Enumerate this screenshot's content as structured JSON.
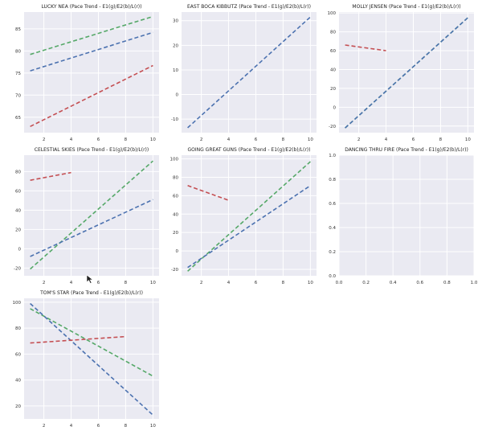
{
  "chart_data": [
    {
      "type": "line",
      "title": "LUCKY NEA (Pace Trend - E1(g)/E2(b)/L(r))",
      "xlim": [
        0.55,
        10.45
      ],
      "ylim": [
        61.5,
        88.8
      ],
      "xticks": [
        2,
        4,
        6,
        8,
        10
      ],
      "yticks": [
        65,
        70,
        75,
        80,
        85
      ],
      "series": [
        {
          "name": "E1",
          "color": "#55a868",
          "x": [
            1,
            10
          ],
          "y": [
            79.2,
            87.8
          ]
        },
        {
          "name": "E2",
          "color": "#4c72b0",
          "x": [
            1,
            10
          ],
          "y": [
            75.5,
            84.2
          ]
        },
        {
          "name": "L",
          "color": "#c44e52",
          "x": [
            1,
            10
          ],
          "y": [
            62.9,
            76.7
          ]
        }
      ]
    },
    {
      "type": "line",
      "title": "EAST BOCA KIBBUTZ (Pace Trend - E1(g)/E2(b)/L(r))",
      "xlim": [
        0.55,
        10.45
      ],
      "ylim": [
        -15.5,
        33.5
      ],
      "xticks": [
        2,
        4,
        6,
        8,
        10
      ],
      "yticks": [
        -10,
        0,
        10,
        20,
        30
      ],
      "series": [
        {
          "name": "E2",
          "color": "#4c72b0",
          "x": [
            1,
            10
          ],
          "y": [
            -13.5,
            31.5
          ]
        }
      ]
    },
    {
      "type": "line",
      "title": "MOLLY JENSEN (Pace Trend - E1(g)/E2(b)/L(r))",
      "xlim": [
        0.55,
        10.45
      ],
      "ylim": [
        -27,
        101
      ],
      "xticks": [
        2,
        4,
        6,
        8,
        10
      ],
      "yticks": [
        -20,
        0,
        20,
        40,
        60,
        80,
        100
      ],
      "series": [
        {
          "name": "E1",
          "color": "#55a868",
          "x": [
            1,
            10
          ],
          "y": [
            -22,
            95
          ]
        },
        {
          "name": "E2",
          "color": "#4c72b0",
          "x": [
            1,
            10
          ],
          "y": [
            -22,
            95
          ]
        },
        {
          "name": "L",
          "color": "#c44e52",
          "x": [
            1,
            4
          ],
          "y": [
            66,
            60
          ]
        }
      ]
    },
    {
      "type": "line",
      "title": "CELESTIAL SKIES (Pace Trend - E1(g)/E2(b)/L(r))",
      "xlim": [
        0.55,
        10.45
      ],
      "ylim": [
        -28,
        97
      ],
      "xticks": [
        2,
        4,
        6,
        8,
        10
      ],
      "yticks": [
        -20,
        0,
        20,
        40,
        60,
        80
      ],
      "series": [
        {
          "name": "E1",
          "color": "#55a868",
          "x": [
            1,
            10
          ],
          "y": [
            -21,
            91
          ]
        },
        {
          "name": "E2",
          "color": "#4c72b0",
          "x": [
            1,
            10
          ],
          "y": [
            -8,
            51
          ]
        },
        {
          "name": "L",
          "color": "#c44e52",
          "x": [
            1,
            4
          ],
          "y": [
            71,
            79
          ]
        }
      ]
    },
    {
      "type": "line",
      "title": "GOING GREAT GUNS (Pace Trend - E1(g)/E2(b)/L(r))",
      "xlim": [
        0.55,
        10.45
      ],
      "ylim": [
        -27,
        104
      ],
      "xticks": [
        2,
        4,
        6,
        8,
        10
      ],
      "yticks": [
        -20,
        0,
        20,
        40,
        60,
        80,
        100
      ],
      "series": [
        {
          "name": "E1",
          "color": "#55a868",
          "x": [
            1,
            10
          ],
          "y": [
            -22,
            97
          ]
        },
        {
          "name": "E2",
          "color": "#4c72b0",
          "x": [
            1,
            10
          ],
          "y": [
            -18,
            71
          ]
        },
        {
          "name": "L",
          "color": "#c44e52",
          "x": [
            1,
            4
          ],
          "y": [
            71,
            55
          ]
        }
      ]
    },
    {
      "type": "line",
      "title": "DANCING THRU FIRE (Pace Trend - E1(g)/E2(b)/L(r))",
      "xlim": [
        0,
        1
      ],
      "ylim": [
        0,
        1
      ],
      "xticks": [
        0.0,
        0.2,
        0.4,
        0.6,
        0.8,
        1.0
      ],
      "yticks": [
        0.0,
        0.2,
        0.4,
        0.6,
        0.8,
        1.0
      ],
      "series": []
    },
    {
      "type": "line",
      "title": "TOM'S STAR (Pace Trend - E1(g)/E2(b)/L(r))",
      "xlim": [
        0.55,
        10.45
      ],
      "ylim": [
        10,
        103
      ],
      "xticks": [
        2,
        4,
        6,
        8,
        10
      ],
      "yticks": [
        20,
        40,
        60,
        80,
        100
      ],
      "series": [
        {
          "name": "E1",
          "color": "#55a868",
          "x": [
            1,
            10
          ],
          "y": [
            95,
            43
          ]
        },
        {
          "name": "E2",
          "color": "#4c72b0",
          "x": [
            1,
            10
          ],
          "y": [
            99,
            13
          ]
        },
        {
          "name": "L",
          "color": "#c44e52",
          "x": [
            1,
            8
          ],
          "y": [
            68.5,
            73.5
          ]
        }
      ]
    }
  ]
}
